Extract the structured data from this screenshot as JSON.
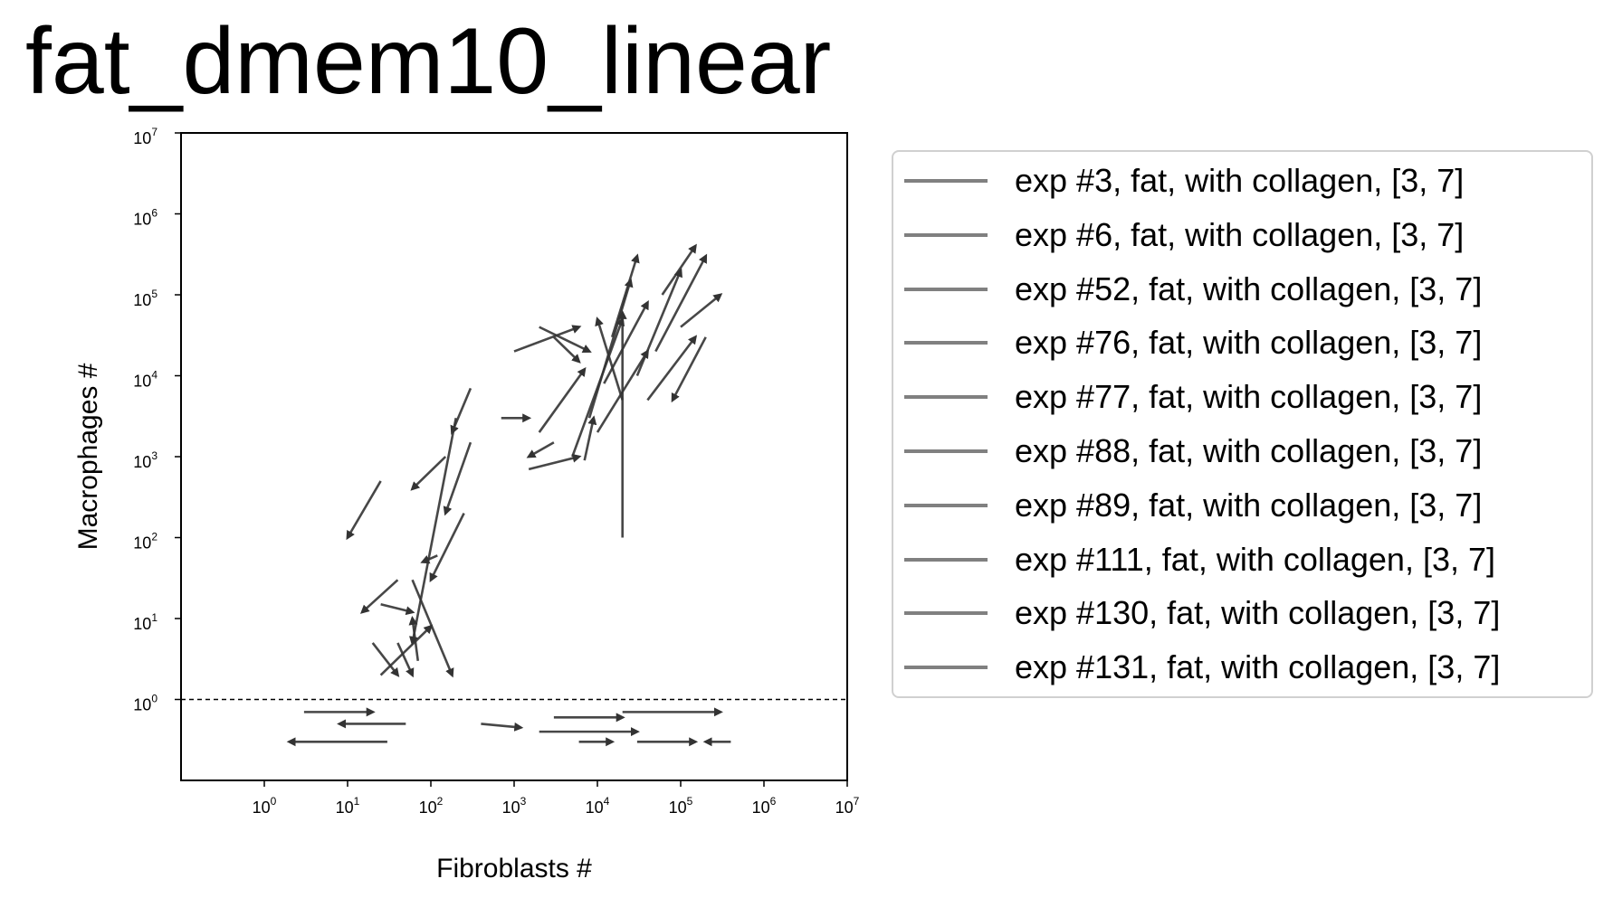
{
  "chart_data": {
    "type": "quiver",
    "title": "fat_dmem10_linear",
    "xlabel": "Fibroblasts #",
    "ylabel": "Macrophages #",
    "xscale": "log",
    "yscale": "log",
    "xlim": [
      0.1,
      10000000
    ],
    "ylim": [
      0.1,
      10000000
    ],
    "x_ticks": [
      {
        "base": "10",
        "exp": "0"
      },
      {
        "base": "10",
        "exp": "1"
      },
      {
        "base": "10",
        "exp": "2"
      },
      {
        "base": "10",
        "exp": "3"
      },
      {
        "base": "10",
        "exp": "4"
      },
      {
        "base": "10",
        "exp": "5"
      },
      {
        "base": "10",
        "exp": "6"
      },
      {
        "base": "10",
        "exp": "7"
      }
    ],
    "y_ticks": [
      {
        "base": "10",
        "exp": "0"
      },
      {
        "base": "10",
        "exp": "1"
      },
      {
        "base": "10",
        "exp": "2"
      },
      {
        "base": "10",
        "exp": "3"
      },
      {
        "base": "10",
        "exp": "4"
      },
      {
        "base": "10",
        "exp": "5"
      },
      {
        "base": "10",
        "exp": "6"
      },
      {
        "base": "10",
        "exp": "7"
      }
    ],
    "reference_line": {
      "y": 1,
      "style": "dashed"
    },
    "legend_placement": "outside-right",
    "arrow_color": "#333333",
    "legend_color": "#808080",
    "series": [
      {
        "name": "exp #3, fat, with collagen, [3, 7]"
      },
      {
        "name": "exp #6, fat, with collagen, [3, 7]"
      },
      {
        "name": "exp #52, fat, with collagen, [3, 7]"
      },
      {
        "name": "exp #76, fat, with collagen, [3, 7]"
      },
      {
        "name": "exp #77, fat, with collagen, [3, 7]"
      },
      {
        "name": "exp #88, fat, with collagen, [3, 7]"
      },
      {
        "name": "exp #89, fat, with collagen, [3, 7]"
      },
      {
        "name": "exp #111, fat, with collagen, [3, 7]"
      },
      {
        "name": "exp #130, fat, with collagen, [3, 7]"
      },
      {
        "name": "exp #131, fat, with collagen, [3, 7]"
      }
    ],
    "arrows": [
      {
        "x0": 200,
        "y0": 3000,
        "x1": 60,
        "y1": 5
      },
      {
        "x0": 25,
        "y0": 500,
        "x1": 10,
        "y1": 100
      },
      {
        "x0": 60,
        "y0": 30,
        "x1": 180,
        "y1": 2
      },
      {
        "x0": 40,
        "y0": 30,
        "x1": 15,
        "y1": 12
      },
      {
        "x0": 25,
        "y0": 15,
        "x1": 60,
        "y1": 12
      },
      {
        "x0": 20,
        "y0": 5,
        "x1": 40,
        "y1": 2
      },
      {
        "x0": 40,
        "y0": 5,
        "x1": 60,
        "y1": 2
      },
      {
        "x0": 70,
        "y0": 3,
        "x1": 60,
        "y1": 10
      },
      {
        "x0": 25,
        "y0": 2,
        "x1": 100,
        "y1": 8
      },
      {
        "x0": 300,
        "y0": 7000,
        "x1": 180,
        "y1": 2000
      },
      {
        "x0": 250,
        "y0": 200,
        "x1": 100,
        "y1": 30
      },
      {
        "x0": 300,
        "y0": 1500,
        "x1": 150,
        "y1": 200
      },
      {
        "x0": 120,
        "y0": 60,
        "x1": 80,
        "y1": 50
      },
      {
        "x0": 150,
        "y0": 1000,
        "x1": 60,
        "y1": 400
      },
      {
        "x0": 2000,
        "y0": 40000,
        "x1": 8000,
        "y1": 20000
      },
      {
        "x0": 1000,
        "y0": 20000,
        "x1": 6000,
        "y1": 40000
      },
      {
        "x0": 3000,
        "y0": 30000,
        "x1": 6000,
        "y1": 15000
      },
      {
        "x0": 5000,
        "y0": 1000,
        "x1": 20000,
        "y1": 50000
      },
      {
        "x0": 10000,
        "y0": 2000,
        "x1": 40000,
        "y1": 20000
      },
      {
        "x0": 20000,
        "y0": 100,
        "x1": 20000,
        "y1": 60000
      },
      {
        "x0": 30000,
        "y0": 10000,
        "x1": 100000,
        "y1": 200000
      },
      {
        "x0": 50000,
        "y0": 20000,
        "x1": 200000,
        "y1": 300000
      },
      {
        "x0": 40000,
        "y0": 5000,
        "x1": 150000,
        "y1": 30000
      },
      {
        "x0": 100000,
        "y0": 40000,
        "x1": 300000,
        "y1": 100000
      },
      {
        "x0": 8000,
        "y0": 3000,
        "x1": 25000,
        "y1": 150000
      },
      {
        "x0": 12000,
        "y0": 8000,
        "x1": 40000,
        "y1": 80000
      },
      {
        "x0": 2000,
        "y0": 2000,
        "x1": 7000,
        "y1": 12000
      },
      {
        "x0": 3000,
        "y0": 1500,
        "x1": 1500,
        "y1": 1000
      },
      {
        "x0": 15000,
        "y0": 30000,
        "x1": 30000,
        "y1": 300000
      },
      {
        "x0": 60000,
        "y0": 100000,
        "x1": 150000,
        "y1": 400000
      },
      {
        "x0": 200000,
        "y0": 30000,
        "x1": 80000,
        "y1": 5000
      },
      {
        "x0": 20000,
        "y0": 5000,
        "x1": 10000,
        "y1": 50000
      },
      {
        "x0": 7000,
        "y0": 900,
        "x1": 9000,
        "y1": 3000
      },
      {
        "x0": 1500,
        "y0": 700,
        "x1": 6000,
        "y1": 1000
      },
      {
        "x0": 700,
        "y0": 3000,
        "x1": 1500,
        "y1": 3000
      },
      {
        "x0": 3,
        "y0": 0.7,
        "x1": 20,
        "y1": 0.7
      },
      {
        "x0": 50,
        "y0": 0.5,
        "x1": 8,
        "y1": 0.5
      },
      {
        "x0": 30,
        "y0": 0.3,
        "x1": 2,
        "y1": 0.3
      },
      {
        "x0": 3000,
        "y0": 0.6,
        "x1": 20000,
        "y1": 0.6
      },
      {
        "x0": 20000,
        "y0": 0.7,
        "x1": 300000,
        "y1": 0.7
      },
      {
        "x0": 2000,
        "y0": 0.4,
        "x1": 30000,
        "y1": 0.4
      },
      {
        "x0": 30000,
        "y0": 0.3,
        "x1": 150000,
        "y1": 0.3
      },
      {
        "x0": 400000,
        "y0": 0.3,
        "x1": 200000,
        "y1": 0.3
      },
      {
        "x0": 400,
        "y0": 0.5,
        "x1": 1200,
        "y1": 0.45
      },
      {
        "x0": 6000,
        "y0": 0.3,
        "x1": 15000,
        "y1": 0.3
      }
    ]
  }
}
